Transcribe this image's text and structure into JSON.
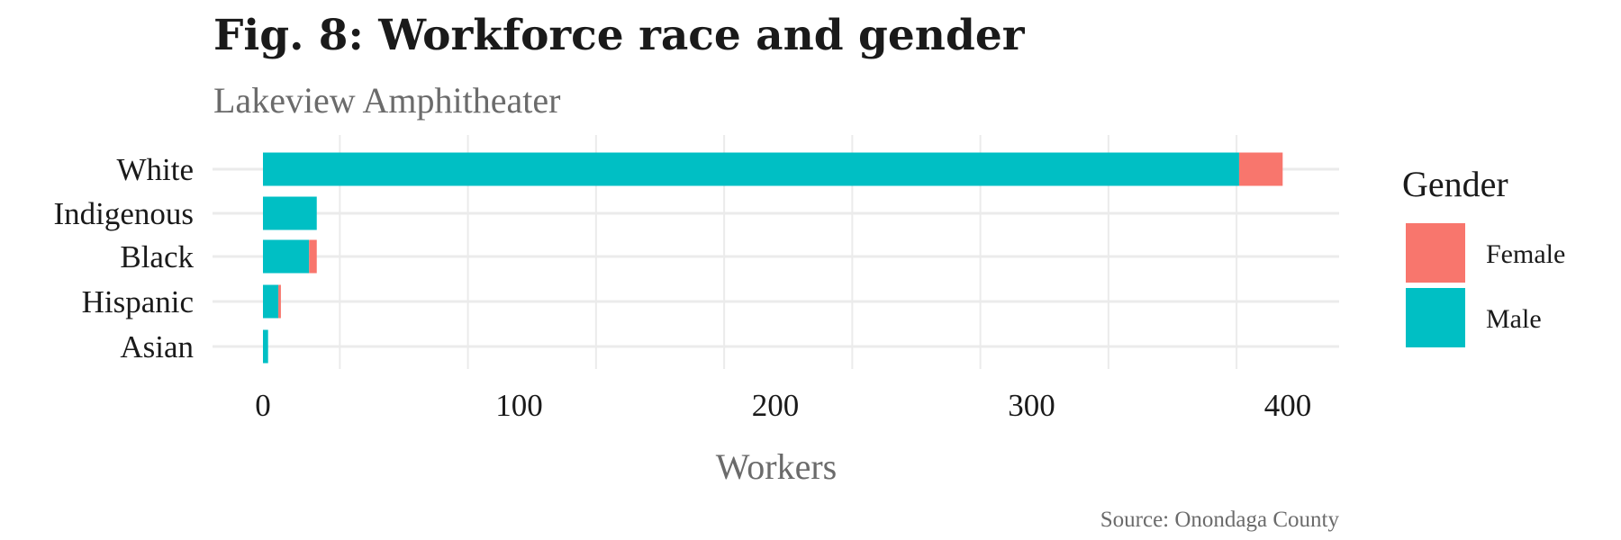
{
  "chart_data": {
    "type": "bar",
    "orientation": "horizontal",
    "stacked": true,
    "title": "Fig. 8: Workforce race and gender",
    "subtitle": "Lakeview Amphitheater",
    "xlabel": "Workers",
    "ylabel": "",
    "caption": "Source: Onondaga County",
    "categories": [
      "White",
      "Indigenous",
      "Black",
      "Hispanic",
      "Asian"
    ],
    "series": [
      {
        "name": "Male",
        "color": "#00BFC4",
        "values": [
          381,
          21,
          18,
          6,
          2
        ]
      },
      {
        "name": "Female",
        "color": "#F8766D",
        "values": [
          17,
          0,
          3,
          1,
          0
        ]
      }
    ],
    "xlim": [
      0,
      400
    ],
    "xticks": [
      0,
      100,
      200,
      300,
      400
    ],
    "grid": true,
    "legend": {
      "title": "Gender",
      "position": "right",
      "entries": [
        {
          "label": "Female",
          "color": "#F8766D"
        },
        {
          "label": "Male",
          "color": "#00BFC4"
        }
      ]
    }
  }
}
